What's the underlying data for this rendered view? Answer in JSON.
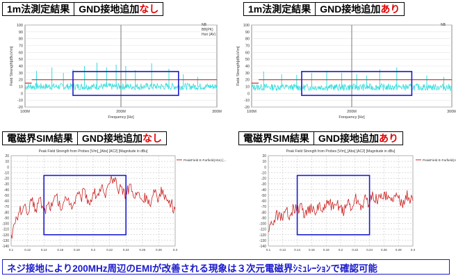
{
  "headers": [
    {
      "left": "1m法測定結果",
      "right_prefix": "GND接地追加",
      "right_suffix": "なし"
    },
    {
      "left": "1m法測定結果",
      "right_prefix": "GND接地追加",
      "right_suffix": "あり"
    },
    {
      "left": "電磁界SIM結果",
      "right_prefix": "GND接地追加",
      "right_suffix": "なし"
    },
    {
      "left": "電磁界SIM結果",
      "right_prefix": "GND接地追加",
      "right_suffix": "あり"
    }
  ],
  "footer": "ネジ接地により200MHz周辺のEMIが改善される現象は３次元電磁界ｼﾐｭﾚｰｼｮﾝで確認可能",
  "colors": {
    "measured": "#33dddd",
    "limit": "#dd2222",
    "sim": "#cc2222",
    "box": "#1a1acc",
    "header_accent": "#e00000"
  },
  "chart_data": [
    {
      "type": "line",
      "ylabel": "Field Strength[dBuV/m]",
      "xlabel": "Frequency [Hz]",
      "ylim": [
        -20,
        100
      ],
      "yticks": [
        -20,
        -10,
        0,
        10,
        20,
        30,
        40,
        50,
        60,
        70,
        80,
        90,
        100
      ],
      "xlim": [
        100,
        300
      ],
      "xtick_labels": [
        "100M",
        "200M",
        "300M"
      ],
      "legend": [
        "NB",
        "BB(PK)",
        "Hori (AV)"
      ],
      "limit_line": [
        {
          "x": [
            100,
            107
          ],
          "y": 15
        },
        {
          "x": [
            107,
            300
          ],
          "y": 20
        }
      ],
      "series": [
        {
          "values_summary": "broadband noise ~5-15 dBuV/m with spikes up to ~40-45",
          "base": 10,
          "spikes": [
            [
              112,
              33
            ],
            [
              128,
              38
            ],
            [
              140,
              30
            ],
            [
              150,
              35
            ],
            [
              162,
              40
            ],
            [
              175,
              45
            ],
            [
              185,
              38
            ],
            [
              195,
              42
            ],
            [
              205,
              40
            ],
            [
              215,
              34
            ],
            [
              232,
              44
            ],
            [
              250,
              36
            ],
            [
              265,
              28
            ],
            [
              280,
              24
            ]
          ]
        }
      ],
      "highlight_box": {
        "x": [
          150,
          260
        ],
        "y": [
          -3,
          32
        ]
      }
    },
    {
      "type": "line",
      "ylabel": "Field Strength[dBuV/m]",
      "xlabel": "Frequency [Hz]",
      "ylim": [
        -20,
        100
      ],
      "yticks": [
        -20,
        -10,
        0,
        10,
        20,
        30,
        40,
        50,
        60,
        70,
        80,
        90,
        100
      ],
      "xlim": [
        100,
        300
      ],
      "xtick_labels": [
        "100M",
        "200M",
        "300M"
      ],
      "legend": [
        "NB"
      ],
      "limit_line": [
        {
          "x": [
            100,
            107
          ],
          "y": 15
        },
        {
          "x": [
            107,
            300
          ],
          "y": 20
        }
      ],
      "series": [
        {
          "values_summary": "broadband noise ~5-15 dBuV/m with spikes",
          "base": 9,
          "spikes": [
            [
              112,
              32
            ],
            [
              130,
              28
            ],
            [
              145,
              27
            ],
            [
              160,
              30
            ],
            [
              175,
              33
            ],
            [
              190,
              30
            ],
            [
              205,
              28
            ],
            [
              215,
              26
            ],
            [
              228,
              35
            ],
            [
              245,
              38
            ],
            [
              260,
              30
            ],
            [
              275,
              26
            ],
            [
              292,
              24
            ]
          ]
        }
      ],
      "highlight_box": {
        "x": [
          150,
          260
        ],
        "y": [
          -3,
          32
        ]
      }
    },
    {
      "type": "line",
      "title": "Peak Field Strength from Probes [V/m]_[Abs] [AC2] [Magnitude in dBu]",
      "legend": [
        "PeakField E-Farfield(Abs) [..."
      ],
      "ylim": [
        -140,
        20
      ],
      "yticks": [
        20,
        10,
        0,
        -10,
        -20,
        -30,
        -40,
        -50,
        -60,
        -70,
        -80,
        -90,
        -100,
        -110,
        -120,
        -130,
        -140
      ],
      "xlim": [
        0.1,
        0.3
      ],
      "xticks": [
        0.1,
        0.12,
        0.14,
        0.16,
        0.18,
        0.2,
        0.22,
        0.24,
        0.26,
        0.28,
        0.3
      ],
      "xtick_labels": [
        "0.1",
        "0.12",
        "0.14",
        "0.16",
        "0.18",
        "0.2",
        "0.22",
        "0.24",
        "0.26",
        "0.28",
        "0.3"
      ],
      "series": [
        {
          "name": "PeakField E-Farfield(Abs) [...",
          "x": [
            0.1,
            0.105,
            0.11,
            0.115,
            0.12,
            0.125,
            0.13,
            0.135,
            0.14,
            0.145,
            0.15,
            0.155,
            0.16,
            0.165,
            0.17,
            0.175,
            0.18,
            0.185,
            0.19,
            0.195,
            0.2,
            0.205,
            0.21,
            0.215,
            0.22,
            0.225,
            0.23,
            0.235,
            0.24,
            0.245,
            0.25,
            0.255,
            0.26,
            0.265,
            0.27,
            0.275,
            0.28,
            0.285,
            0.29,
            0.295,
            0.3
          ],
          "values": [
            -120,
            -100,
            -80,
            -70,
            -85,
            -60,
            -75,
            -55,
            -80,
            -65,
            -70,
            -50,
            -75,
            -60,
            -55,
            -70,
            -50,
            -55,
            -40,
            -65,
            -45,
            -50,
            -35,
            -55,
            -30,
            -20,
            -40,
            -35,
            -50,
            -30,
            -55,
            -45,
            -60,
            -50,
            -70,
            -45,
            -55,
            -40,
            -60,
            -65,
            -75
          ]
        }
      ],
      "highlight_box": {
        "x": [
          0.14,
          0.24
        ],
        "y": [
          -120,
          -15
        ]
      }
    },
    {
      "type": "line",
      "title": "Peak Field Strength from Probes [V/m]_[Abs] [AC2] [Magnitude in dBu]",
      "legend": [
        "PeakField E-Farfield(Abs) [..."
      ],
      "ylim": [
        -140,
        20
      ],
      "yticks": [
        20,
        10,
        0,
        -10,
        -20,
        -30,
        -40,
        -50,
        -60,
        -70,
        -80,
        -90,
        -100,
        -110,
        -120,
        -130,
        -140
      ],
      "xlim": [
        0.1,
        0.3
      ],
      "xticks": [
        0.1,
        0.12,
        0.14,
        0.16,
        0.18,
        0.2,
        0.22,
        0.24,
        0.26,
        0.28,
        0.3
      ],
      "xtick_labels": [
        "0.1",
        "0.12",
        "0.14",
        "0.16",
        "0.18",
        "0.2",
        "0.22",
        "0.24",
        "0.26",
        "0.28",
        "0.3"
      ],
      "series": [
        {
          "name": "PeakField E-Farfield(Abs) [...",
          "x": [
            0.1,
            0.105,
            0.11,
            0.115,
            0.12,
            0.125,
            0.13,
            0.135,
            0.14,
            0.145,
            0.15,
            0.155,
            0.16,
            0.165,
            0.17,
            0.175,
            0.18,
            0.185,
            0.19,
            0.195,
            0.2,
            0.205,
            0.21,
            0.215,
            0.22,
            0.225,
            0.23,
            0.235,
            0.24,
            0.245,
            0.25,
            0.255,
            0.26,
            0.265,
            0.27,
            0.275,
            0.28,
            0.285,
            0.29,
            0.295,
            0.3
          ],
          "values": [
            -115,
            -100,
            -90,
            -80,
            -95,
            -75,
            -85,
            -70,
            -80,
            -65,
            -90,
            -70,
            -75,
            -85,
            -65,
            -80,
            -70,
            -60,
            -75,
            -65,
            -70,
            -80,
            -60,
            -75,
            -55,
            -65,
            -70,
            -55,
            -65,
            -50,
            -60,
            -55,
            -45,
            -55,
            -60,
            -50,
            -55,
            -65,
            -50,
            -55,
            -60
          ]
        }
      ],
      "highlight_box": {
        "x": [
          0.14,
          0.24
        ],
        "y": [
          -120,
          -15
        ]
      }
    }
  ]
}
